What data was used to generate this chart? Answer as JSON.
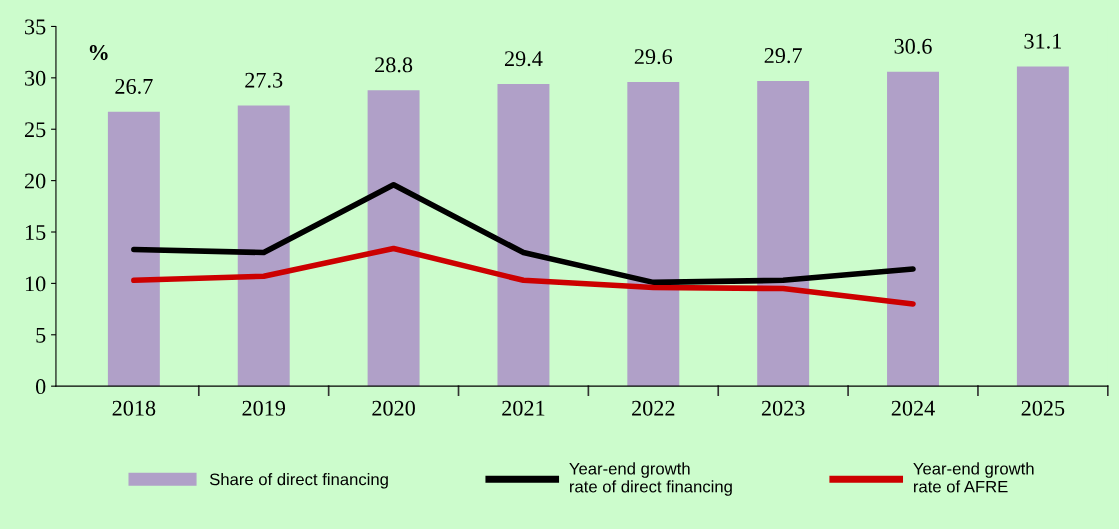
{
  "chart_data": {
    "type": "bar",
    "ylabel": "%",
    "categories": [
      "2018",
      "2019",
      "2020",
      "2021",
      "2022",
      "2023",
      "2024",
      "2025"
    ],
    "series": [
      {
        "name": "Share of direct financing",
        "color": "#b0a0c8",
        "values": [
          26.7,
          27.3,
          28.8,
          29.4,
          29.6,
          29.7,
          30.6,
          31.1
        ],
        "value_labels": [
          "26.7",
          "27.3",
          "28.8",
          "29.4",
          "29.6",
          "29.7",
          "30.6",
          "31.1"
        ]
      },
      {
        "name": "Year-end growth\nrate of direct financing",
        "type": "line",
        "color": "#000000",
        "values": [
          13.3,
          13.0,
          19.6,
          13.0,
          10.1,
          10.3,
          11.4,
          null
        ]
      },
      {
        "name": "Year-end growth\nrate of AFRE",
        "type": "line",
        "color": "#cc0000",
        "values": [
          10.3,
          10.7,
          13.4,
          10.3,
          9.6,
          9.5,
          8.0,
          null
        ]
      }
    ],
    "ylim": [
      0,
      35
    ],
    "yticks": [
      0,
      5,
      10,
      15,
      20,
      25,
      30,
      35
    ],
    "grid": false,
    "legend": "bottom",
    "line_style": "solid",
    "marker": "none"
  }
}
